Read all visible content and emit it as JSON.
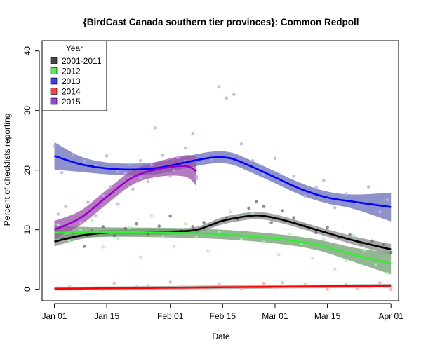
{
  "chart_data": {
    "type": "line",
    "title": "{BirdCast Canada southern tier provinces}: Common Redpoll",
    "xlabel": "Date",
    "ylabel": "Percent of checklists reporting",
    "xlim_days_from_jan01": [
      0,
      90
    ],
    "ylim": [
      0,
      40
    ],
    "x_ticks": [
      {
        "day": 0,
        "label": "Jan 01"
      },
      {
        "day": 14,
        "label": "Jan 15"
      },
      {
        "day": 31,
        "label": "Feb 01"
      },
      {
        "day": 45,
        "label": "Feb 15"
      },
      {
        "day": 59,
        "label": "Mar 01"
      },
      {
        "day": 73,
        "label": "Mar 15"
      },
      {
        "day": 90,
        "label": "Apr 01"
      }
    ],
    "y_ticks": [
      0,
      10,
      20,
      30,
      40
    ],
    "grid": false,
    "legend": {
      "title": "Year",
      "placement": "top-left"
    },
    "series": [
      {
        "name": "2001-2011",
        "color": "#000000",
        "fill": "#444444",
        "band": "#8a8a8a",
        "point": "#707070",
        "curve": [
          [
            0,
            8.0
          ],
          [
            7,
            9.0
          ],
          [
            14,
            9.5
          ],
          [
            21,
            9.6
          ],
          [
            31,
            9.7
          ],
          [
            38,
            10.0
          ],
          [
            45,
            11.5
          ],
          [
            52,
            12.3
          ],
          [
            56,
            12.3
          ],
          [
            62,
            11.5
          ],
          [
            70,
            10.0
          ],
          [
            80,
            8.2
          ],
          [
            90,
            6.7
          ]
        ],
        "se": [
          0.8,
          0.6,
          0.5,
          0.5,
          0.5,
          0.5,
          0.6,
          0.6,
          0.6,
          0.6,
          0.6,
          0.7,
          0.9
        ],
        "points": [
          [
            2,
            8.5
          ],
          [
            5,
            9.5
          ],
          [
            8,
            7.2
          ],
          [
            10,
            9.8
          ],
          [
            13,
            10.5
          ],
          [
            16,
            9.0
          ],
          [
            19,
            10.2
          ],
          [
            22,
            11.0
          ],
          [
            25,
            9.3
          ],
          [
            28,
            10.6
          ],
          [
            31,
            12.3
          ],
          [
            34,
            9.8
          ],
          [
            37,
            10.5
          ],
          [
            40,
            11.2
          ],
          [
            43,
            10.9
          ],
          [
            46,
            12.0
          ],
          [
            49,
            11.8
          ],
          [
            52,
            13.6
          ],
          [
            54,
            14.7
          ],
          [
            56,
            13.9
          ],
          [
            58,
            11.2
          ],
          [
            61,
            13.2
          ],
          [
            64,
            12.0
          ],
          [
            67,
            10.8
          ],
          [
            70,
            9.5
          ],
          [
            73,
            10.4
          ],
          [
            76,
            8.7
          ],
          [
            79,
            9.2
          ],
          [
            82,
            7.6
          ],
          [
            85,
            8.1
          ],
          [
            88,
            7.5
          ],
          [
            90,
            6.2
          ]
        ]
      },
      {
        "name": "2012",
        "color": "#33ee33",
        "fill": "#55ee55",
        "band": "#6f9f6f",
        "point": "#a6f5a6",
        "curve": [
          [
            0,
            9.5
          ],
          [
            14,
            9.6
          ],
          [
            31,
            9.5
          ],
          [
            45,
            9.2
          ],
          [
            59,
            8.5
          ],
          [
            70,
            7.5
          ],
          [
            80,
            5.8
          ],
          [
            90,
            4.3
          ]
        ],
        "se": [
          1.1,
          0.8,
          0.8,
          0.8,
          0.8,
          0.9,
          1.2,
          1.8
        ],
        "points": [
          [
            1,
            10.8
          ],
          [
            4,
            8.1
          ],
          [
            7,
            9.9
          ],
          [
            10,
            11.5
          ],
          [
            13,
            7.1
          ],
          [
            17,
            8.6
          ],
          [
            20,
            10.3
          ],
          [
            23,
            5.4
          ],
          [
            26,
            12.4
          ],
          [
            29,
            8.8
          ],
          [
            32,
            7.2
          ],
          [
            35,
            11.0
          ],
          [
            38,
            8.7
          ],
          [
            41,
            6.4
          ],
          [
            44,
            9.6
          ],
          [
            47,
            13.0
          ],
          [
            50,
            8.4
          ],
          [
            53,
            12.8
          ],
          [
            56,
            7.9
          ],
          [
            60,
            5.8
          ],
          [
            63,
            9.3
          ],
          [
            66,
            7.7
          ],
          [
            69,
            5.2
          ],
          [
            72,
            8.4
          ],
          [
            75,
            3.4
          ],
          [
            78,
            4.8
          ],
          [
            80,
            9.0
          ],
          [
            83,
            6.6
          ],
          [
            86,
            4.1
          ],
          [
            89,
            2.7
          ]
        ]
      },
      {
        "name": "2013",
        "color": "#0000ff",
        "fill": "#3f3fff",
        "band": "#6a6db8",
        "point": "#aab0f5",
        "curve": [
          [
            0,
            22.4
          ],
          [
            7,
            21.0
          ],
          [
            14,
            20.3
          ],
          [
            21,
            20.1
          ],
          [
            28,
            20.4
          ],
          [
            35,
            21.3
          ],
          [
            42,
            22.1
          ],
          [
            47,
            22.0
          ],
          [
            52,
            20.8
          ],
          [
            59,
            18.8
          ],
          [
            66,
            16.8
          ],
          [
            73,
            15.4
          ],
          [
            80,
            14.7
          ],
          [
            90,
            13.8
          ]
        ],
        "se": [
          2.3,
          1.3,
          1.0,
          1.0,
          1.0,
          1.0,
          1.0,
          1.0,
          1.0,
          1.0,
          1.0,
          1.0,
          1.2,
          2.4
        ],
        "points": [
          [
            0,
            24.0
          ],
          [
            2,
            19.6
          ],
          [
            5,
            22.6
          ],
          [
            8,
            21.5
          ],
          [
            11,
            20.8
          ],
          [
            14,
            22.4
          ],
          [
            17,
            19.8
          ],
          [
            20,
            21.0
          ],
          [
            23,
            18.7
          ],
          [
            26,
            20.9
          ],
          [
            29,
            22.5
          ],
          [
            32,
            19.9
          ],
          [
            35,
            21.5
          ],
          [
            38,
            18.9
          ],
          [
            42,
            21.9
          ],
          [
            44,
            34.0
          ],
          [
            46,
            32.1
          ],
          [
            48,
            32.7
          ],
          [
            50,
            24.4
          ],
          [
            53,
            21.6
          ],
          [
            56,
            19.3
          ],
          [
            59,
            22.0
          ],
          [
            61,
            17.9
          ],
          [
            64,
            19.0
          ],
          [
            67,
            15.6
          ],
          [
            70,
            17.1
          ],
          [
            72,
            18.3
          ],
          [
            75,
            13.7
          ],
          [
            78,
            16.0
          ],
          [
            81,
            14.5
          ],
          [
            84,
            17.2
          ],
          [
            87,
            13.0
          ],
          [
            89,
            15.0
          ]
        ]
      },
      {
        "name": "2014",
        "color": "#ff0000",
        "fill": "#ff4040",
        "band": "#999999",
        "point": "#f7a8a8",
        "curve": [
          [
            0,
            0.1
          ],
          [
            90,
            0.6
          ]
        ],
        "se": [
          0.3,
          0.3
        ],
        "points": [
          [
            1,
            0.3
          ],
          [
            4,
            0.4
          ],
          [
            7,
            0.0
          ],
          [
            10,
            0.2
          ],
          [
            13,
            0.0
          ],
          [
            16,
            1.0
          ],
          [
            19,
            0.0
          ],
          [
            22,
            0.4
          ],
          [
            25,
            0.6
          ],
          [
            28,
            0.3
          ],
          [
            31,
            1.2
          ],
          [
            34,
            0.4
          ],
          [
            37,
            0.3
          ],
          [
            40,
            0.1
          ],
          [
            44,
            0.8
          ],
          [
            47,
            0.5
          ],
          [
            50,
            0.1
          ],
          [
            53,
            0.6
          ],
          [
            56,
            0.9
          ],
          [
            59,
            0.3
          ],
          [
            61,
            1.1
          ],
          [
            64,
            0.4
          ],
          [
            67,
            0.8
          ],
          [
            70,
            0.5
          ],
          [
            73,
            0.0
          ],
          [
            76,
            0.5
          ],
          [
            78,
            0.8
          ],
          [
            81,
            0.1
          ],
          [
            84,
            0.4
          ],
          [
            87,
            1.1
          ],
          [
            90,
            0.0
          ]
        ]
      },
      {
        "name": "2015",
        "color": "#9a00d0",
        "fill": "#a040e0",
        "band": "#9b4fa8",
        "point": "#cfa0f0",
        "curve": [
          [
            0,
            10.0
          ],
          [
            7,
            12.0
          ],
          [
            14,
            15.5
          ],
          [
            21,
            18.8
          ],
          [
            28,
            20.2
          ],
          [
            35,
            20.7
          ],
          [
            38,
            19.8
          ]
        ],
        "se": [
          1.5,
          1.2,
          1.2,
          1.2,
          1.3,
          1.8,
          2.5
        ],
        "points": [
          [
            1,
            12.6
          ],
          [
            3,
            13.9
          ],
          [
            5,
            9.7
          ],
          [
            7,
            11.2
          ],
          [
            9,
            14.6
          ],
          [
            11,
            12.4
          ],
          [
            13,
            15.7
          ],
          [
            15,
            17.2
          ],
          [
            17,
            14.3
          ],
          [
            19,
            19.5
          ],
          [
            21,
            16.8
          ],
          [
            23,
            21.6
          ],
          [
            25,
            18.1
          ],
          [
            27,
            27.1
          ],
          [
            29,
            20.4
          ],
          [
            31,
            19.0
          ],
          [
            33,
            22.1
          ],
          [
            35,
            23.7
          ],
          [
            37,
            26.1
          ],
          [
            38,
            18.6
          ]
        ]
      }
    ]
  }
}
